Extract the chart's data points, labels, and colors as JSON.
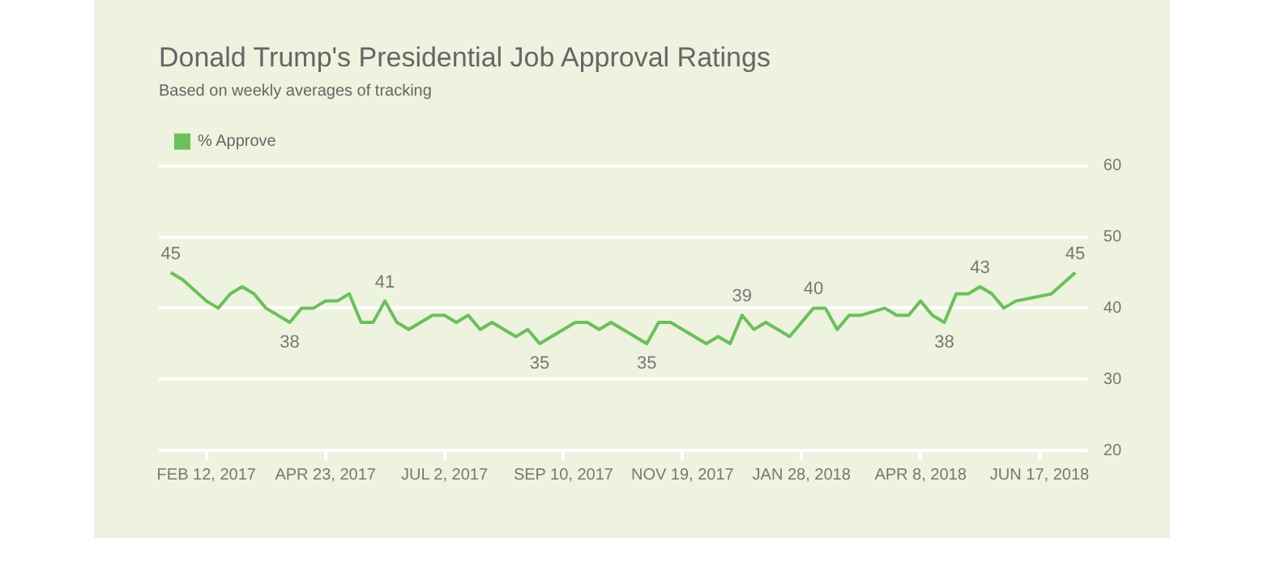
{
  "chart_data": {
    "type": "line",
    "title": "Donald Trump's Presidential Job Approval Ratings",
    "subtitle": "Based on weekly averages of tracking",
    "x": [
      "2017-01-22",
      "2017-01-29",
      "2017-02-12",
      "2017-02-19",
      "2017-02-26",
      "2017-03-05",
      "2017-03-12",
      "2017-03-19",
      "2017-04-02",
      "2017-04-09",
      "2017-04-16",
      "2017-04-23",
      "2017-04-30",
      "2017-05-07",
      "2017-05-14",
      "2017-05-21",
      "2017-05-28",
      "2017-06-04",
      "2017-06-11",
      "2017-06-18",
      "2017-06-25",
      "2017-07-02",
      "2017-07-09",
      "2017-07-16",
      "2017-07-23",
      "2017-07-30",
      "2017-08-06",
      "2017-08-13",
      "2017-08-20",
      "2017-08-27",
      "2017-09-03",
      "2017-09-17",
      "2017-09-24",
      "2017-10-01",
      "2017-10-08",
      "2017-10-15",
      "2017-10-29",
      "2017-11-05",
      "2017-11-12",
      "2017-11-19",
      "2017-12-03",
      "2017-12-10",
      "2017-12-17",
      "2017-12-24",
      "2017-12-31",
      "2018-01-07",
      "2018-01-21",
      "2018-01-28",
      "2018-02-04",
      "2018-02-11",
      "2018-02-18",
      "2018-02-25",
      "2018-03-04",
      "2018-03-18",
      "2018-03-25",
      "2018-04-01",
      "2018-04-08",
      "2018-04-15",
      "2018-04-22",
      "2018-04-29",
      "2018-05-06",
      "2018-05-13",
      "2018-05-20",
      "2018-05-27",
      "2018-06-03",
      "2018-06-24",
      "2018-07-08"
    ],
    "series": [
      {
        "name": "% Approve",
        "color": "#6cbf5b",
        "values": [
          45,
          44,
          41,
          40,
          42,
          43,
          42,
          40,
          38,
          40,
          40,
          41,
          41,
          42,
          38,
          38,
          41,
          38,
          37,
          38,
          39,
          39,
          38,
          39,
          37,
          38,
          37,
          36,
          37,
          35,
          36,
          38,
          38,
          37,
          38,
          37,
          35,
          38,
          38,
          37,
          35,
          36,
          35,
          39,
          37,
          38,
          36,
          38,
          40,
          40,
          37,
          39,
          39,
          40,
          39,
          39,
          41,
          39,
          38,
          42,
          42,
          43,
          42,
          40,
          41,
          42,
          45
        ],
        "value_labels": [
          "45",
          null,
          null,
          null,
          null,
          null,
          null,
          null,
          "38",
          null,
          null,
          null,
          null,
          null,
          null,
          null,
          "41",
          null,
          null,
          null,
          null,
          null,
          null,
          null,
          null,
          null,
          null,
          null,
          null,
          "35",
          null,
          null,
          null,
          null,
          null,
          null,
          "35",
          null,
          null,
          null,
          null,
          null,
          null,
          "39",
          null,
          null,
          null,
          null,
          "40",
          null,
          null,
          null,
          null,
          null,
          null,
          null,
          null,
          null,
          "38",
          null,
          null,
          "43",
          null,
          null,
          null,
          null,
          "45"
        ]
      }
    ],
    "xlim": [
      "2017-01-15",
      "2018-07-15"
    ],
    "xticks": [
      {
        "value": "2017-02-12",
        "label": "FEB 12, 2017"
      },
      {
        "value": "2017-04-23",
        "label": "APR 23, 2017"
      },
      {
        "value": "2017-07-02",
        "label": "JUL 2, 2017"
      },
      {
        "value": "2017-09-10",
        "label": "SEP 10, 2017"
      },
      {
        "value": "2017-11-19",
        "label": "NOV 19, 2017"
      },
      {
        "value": "2018-01-28",
        "label": "JAN 28, 2018"
      },
      {
        "value": "2018-04-08",
        "label": "APR 8, 2018"
      },
      {
        "value": "2018-06-17",
        "label": "JUN 17, 2018"
      }
    ],
    "ylim": [
      20,
      60
    ],
    "yticks": [
      20,
      30,
      40,
      50,
      60
    ],
    "grid": "y",
    "legend": "top left",
    "marker": "none",
    "line_style": "solid"
  }
}
